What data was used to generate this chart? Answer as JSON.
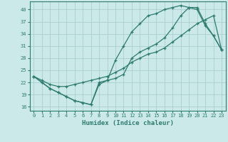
{
  "xlabel": "Humidex (Indice chaleur)",
  "bg_color": "#cce9e9",
  "line_color": "#2d7b6e",
  "grid_color": "#aacece",
  "xlim": [
    -0.5,
    23.5
  ],
  "ylim": [
    15.0,
    42.0
  ],
  "xticks": [
    0,
    1,
    2,
    3,
    4,
    5,
    6,
    7,
    8,
    9,
    10,
    11,
    12,
    13,
    14,
    15,
    16,
    17,
    18,
    19,
    20,
    21,
    22,
    23
  ],
  "yticks": [
    16,
    19,
    22,
    25,
    28,
    31,
    34,
    37,
    40
  ],
  "line1_x": [
    0,
    1,
    2,
    3,
    4,
    5,
    6,
    7,
    8,
    9,
    10,
    11,
    12,
    13,
    14,
    15,
    16,
    17,
    18,
    19,
    20,
    21,
    22,
    23
  ],
  "line1_y": [
    23.5,
    22,
    20.5,
    19.5,
    18.5,
    17.5,
    17.0,
    16.5,
    21.5,
    22.5,
    27.5,
    31.0,
    34.5,
    36.5,
    38.5,
    39.0,
    40.0,
    40.5,
    41.0,
    40.5,
    40.0,
    36.0,
    33.5,
    30.0
  ],
  "line2_x": [
    0,
    1,
    2,
    3,
    4,
    5,
    6,
    7,
    8,
    9,
    10,
    11,
    12,
    13,
    14,
    15,
    16,
    17,
    18,
    19,
    20,
    21,
    22,
    23
  ],
  "line2_y": [
    23.5,
    22.0,
    20.5,
    19.5,
    18.5,
    17.5,
    17.0,
    16.5,
    22.0,
    22.5,
    23.0,
    24.0,
    28.0,
    29.5,
    30.5,
    31.5,
    33.0,
    35.5,
    38.5,
    40.5,
    40.5,
    36.5,
    33.5,
    30.0
  ],
  "line3_x": [
    0,
    1,
    2,
    3,
    4,
    5,
    6,
    7,
    8,
    9,
    10,
    11,
    12,
    13,
    14,
    15,
    16,
    17,
    18,
    19,
    20,
    21,
    22,
    23
  ],
  "line3_y": [
    23.5,
    22.5,
    21.5,
    21.0,
    21.0,
    21.5,
    22.0,
    22.5,
    23.0,
    23.5,
    24.5,
    25.5,
    27.0,
    28.0,
    29.0,
    29.5,
    30.5,
    32.0,
    33.5,
    35.0,
    36.5,
    37.5,
    38.5,
    30.0
  ]
}
